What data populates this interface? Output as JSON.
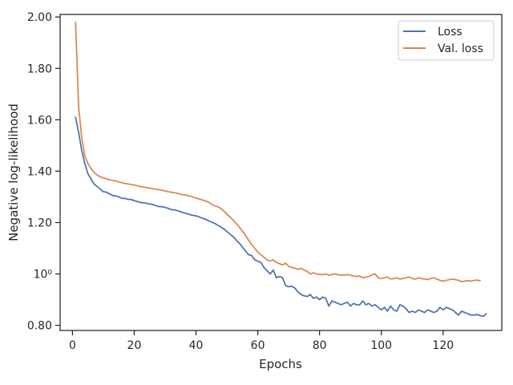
{
  "chart_data": {
    "type": "line",
    "title": "",
    "xlabel": "Epochs",
    "ylabel": "Negative log-likelihood",
    "xlim": [
      -4,
      139
    ],
    "ylim": [
      0.78,
      2.01
    ],
    "x_ticks": [
      0,
      20,
      40,
      60,
      80,
      100,
      120
    ],
    "y_ticks": [
      {
        "value": 0.8,
        "label": "0.80"
      },
      {
        "value": 1.0,
        "label": "10⁰"
      },
      {
        "value": 1.2,
        "label": "1.20"
      },
      {
        "value": 1.4,
        "label": "1.40"
      },
      {
        "value": 1.6,
        "label": "1.60"
      },
      {
        "value": 1.8,
        "label": "1.80"
      },
      {
        "value": 2.0,
        "label": "2.00"
      }
    ],
    "grid": false,
    "legend_position": "top-right",
    "series": [
      {
        "name": "Loss",
        "color": "#4c72b0",
        "x_start": 1,
        "values": [
          1.61,
          1.55,
          1.48,
          1.43,
          1.39,
          1.37,
          1.35,
          1.34,
          1.33,
          1.32,
          1.318,
          1.312,
          1.305,
          1.304,
          1.3,
          1.294,
          1.294,
          1.29,
          1.29,
          1.285,
          1.282,
          1.278,
          1.277,
          1.275,
          1.272,
          1.27,
          1.266,
          1.262,
          1.262,
          1.259,
          1.255,
          1.25,
          1.25,
          1.246,
          1.242,
          1.238,
          1.235,
          1.231,
          1.228,
          1.226,
          1.222,
          1.217,
          1.213,
          1.207,
          1.202,
          1.197,
          1.19,
          1.183,
          1.175,
          1.165,
          1.155,
          1.145,
          1.132,
          1.12,
          1.105,
          1.09,
          1.075,
          1.072,
          1.055,
          1.05,
          1.045,
          1.025,
          1.012,
          1.0,
          1.015,
          0.985,
          0.99,
          0.985,
          0.955,
          0.95,
          0.952,
          0.945,
          0.93,
          0.92,
          0.915,
          0.912,
          0.92,
          0.905,
          0.91,
          0.9,
          0.91,
          0.905,
          0.875,
          0.895,
          0.89,
          0.885,
          0.88,
          0.885,
          0.89,
          0.875,
          0.885,
          0.88,
          0.88,
          0.895,
          0.88,
          0.885,
          0.875,
          0.88,
          0.87,
          0.86,
          0.87,
          0.855,
          0.875,
          0.86,
          0.855,
          0.88,
          0.875,
          0.865,
          0.85,
          0.855,
          0.85,
          0.86,
          0.855,
          0.85,
          0.86,
          0.855,
          0.85,
          0.855,
          0.87,
          0.86,
          0.87,
          0.865,
          0.86,
          0.85,
          0.84,
          0.855,
          0.85,
          0.845,
          0.84,
          0.84,
          0.842,
          0.838,
          0.835,
          0.845
        ]
      },
      {
        "name": "Val. loss",
        "color": "#dd8452",
        "x_start": 1,
        "values": [
          1.98,
          1.65,
          1.53,
          1.46,
          1.43,
          1.41,
          1.395,
          1.385,
          1.378,
          1.374,
          1.37,
          1.366,
          1.364,
          1.362,
          1.358,
          1.355,
          1.352,
          1.35,
          1.348,
          1.346,
          1.343,
          1.34,
          1.338,
          1.336,
          1.334,
          1.332,
          1.33,
          1.328,
          1.326,
          1.323,
          1.32,
          1.318,
          1.316,
          1.314,
          1.31,
          1.308,
          1.306,
          1.303,
          1.3,
          1.295,
          1.292,
          1.288,
          1.284,
          1.28,
          1.272,
          1.265,
          1.262,
          1.255,
          1.245,
          1.232,
          1.222,
          1.21,
          1.196,
          1.182,
          1.168,
          1.15,
          1.132,
          1.115,
          1.1,
          1.085,
          1.075,
          1.065,
          1.055,
          1.05,
          1.055,
          1.045,
          1.04,
          1.035,
          1.042,
          1.03,
          1.025,
          1.022,
          1.018,
          1.022,
          1.015,
          1.01,
          1.0,
          1.005,
          1.0,
          0.998,
          0.997,
          1.0,
          0.995,
          0.998,
          1.0,
          0.997,
          0.995,
          0.995,
          0.998,
          0.995,
          0.992,
          0.99,
          0.992,
          0.985,
          0.988,
          0.99,
          0.997,
          1.0,
          0.985,
          0.982,
          0.985,
          0.988,
          0.98,
          0.982,
          0.985,
          0.98,
          0.982,
          0.985,
          0.988,
          0.982,
          0.98,
          0.985,
          0.982,
          0.98,
          0.978,
          0.982,
          0.985,
          0.98,
          0.975,
          0.972,
          0.975,
          0.978,
          0.98,
          0.978,
          0.975,
          0.97,
          0.972,
          0.974,
          0.972,
          0.975,
          0.976,
          0.974
        ]
      }
    ]
  }
}
